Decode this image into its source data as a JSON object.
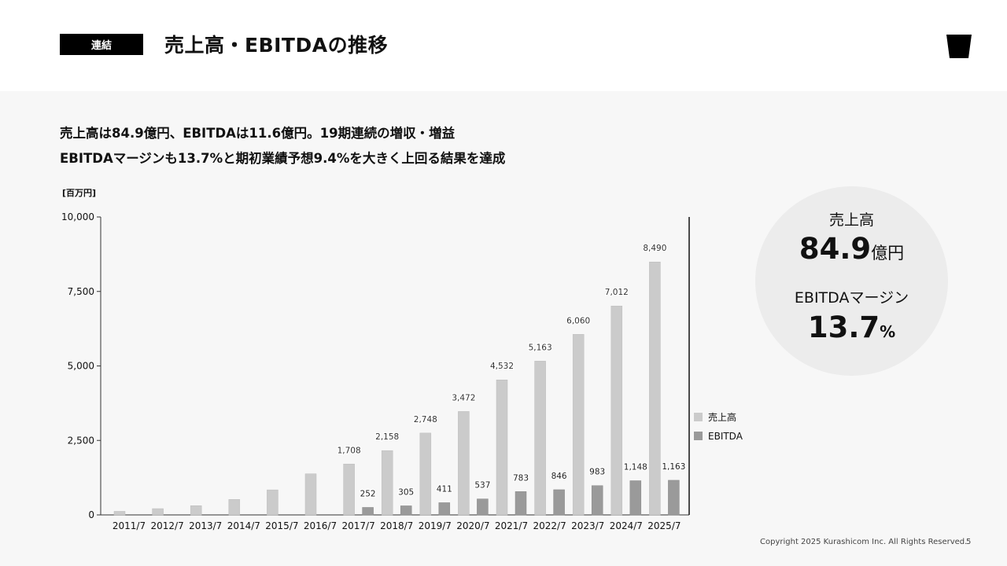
{
  "header": {
    "tag": "連結",
    "title": "売上高・EBITDAの推移"
  },
  "lead": {
    "line1": "売上高は84.9億円、EBITDAは11.6億円。19期連続の増収・増益",
    "line2": "EBITDAマージンも13.7%と期初業績予想9.4%を大きく上回る結果を達成"
  },
  "summary": {
    "sales_label": "売上高",
    "sales_value": "84.9",
    "sales_unit": "億円",
    "margin_label": "EBITDAマージン",
    "margin_value": "13.7",
    "margin_unit": "%"
  },
  "footer": {
    "copyright": "Copyright 2025 Kurashicom Inc. All Rights Reserved.",
    "page": "5"
  },
  "colors": {
    "sales": "#cbcbcb",
    "ebitda": "#9a9a9a"
  },
  "chart_data": {
    "type": "bar",
    "ylabel": "[百万円]",
    "ylim": [
      0,
      10000
    ],
    "yticks": [
      "0",
      "2,500",
      "5,000",
      "7,500",
      "10,000"
    ],
    "ytick_values": [
      0,
      2500,
      5000,
      7500,
      10000
    ],
    "categories": [
      "2011/7",
      "2012/7",
      "2013/7",
      "2014/7",
      "2015/7",
      "2016/7",
      "2017/7",
      "2018/7",
      "2019/7",
      "2020/7",
      "2021/7",
      "2022/7",
      "2023/7",
      "2024/7",
      "2025/7"
    ],
    "legend_position": "right",
    "series": [
      {
        "name": "売上高",
        "values": [
          120,
          210,
          310,
          520,
          840,
          1380,
          1708,
          2158,
          2748,
          3472,
          4532,
          5163,
          6060,
          7012,
          8490
        ],
        "labels": [
          "",
          "",
          "",
          "",
          "",
          "",
          "1,708",
          "2,158",
          "2,748",
          "3,472",
          "4,532",
          "5,163",
          "6,060",
          "7,012",
          "8,490"
        ]
      },
      {
        "name": "EBITDA",
        "values": [
          null,
          null,
          null,
          null,
          null,
          null,
          252,
          305,
          411,
          537,
          783,
          846,
          983,
          1148,
          1163
        ],
        "labels": [
          "",
          "",
          "",
          "",
          "",
          "",
          "252",
          "305",
          "411",
          "537",
          "783",
          "846",
          "983",
          "1,148",
          "1,163"
        ]
      }
    ]
  }
}
